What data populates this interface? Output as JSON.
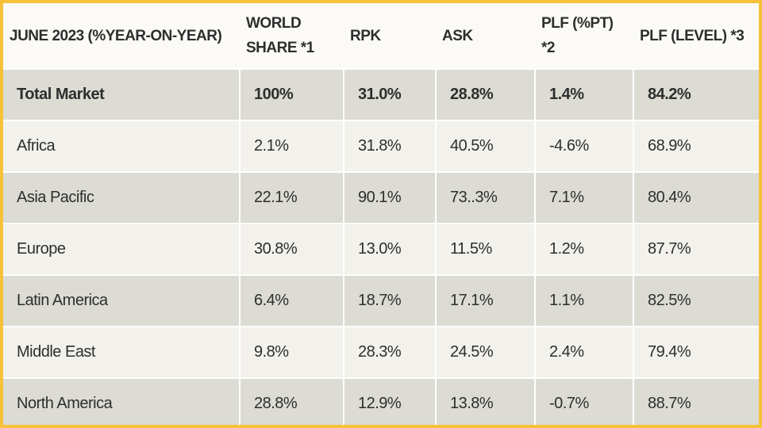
{
  "table": {
    "headers": [
      "JUNE 2023 (%YEAR-ON-YEAR)",
      "WORLD SHARE *1",
      "RPK",
      "ASK",
      "PLF (%PT) *2",
      "PLF (LEVEL) *3"
    ],
    "rows": [
      [
        "Total Market",
        "100%",
        "31.0%",
        "28.8%",
        "1.4%",
        "84.2%"
      ],
      [
        "Africa",
        "2.1%",
        "31.8%",
        "40.5%",
        "-4.6%",
        "68.9%"
      ],
      [
        "Asia Pacific",
        "22.1%",
        "90.1%",
        "73..3%",
        "7.1%",
        "80.4%"
      ],
      [
        "Europe",
        "30.8%",
        "13.0%",
        "11.5%",
        "1.2%",
        "87.7%"
      ],
      [
        "Latin America",
        "6.4%",
        "18.7%",
        "17.1%",
        "1.1%",
        "82.5%"
      ],
      [
        "Middle East",
        "9.8%",
        "28.3%",
        "24.5%",
        "2.4%",
        "79.4%"
      ],
      [
        "North America",
        "28.8%",
        "12.9%",
        "13.8%",
        "-0.7%",
        "88.7%"
      ]
    ]
  }
}
